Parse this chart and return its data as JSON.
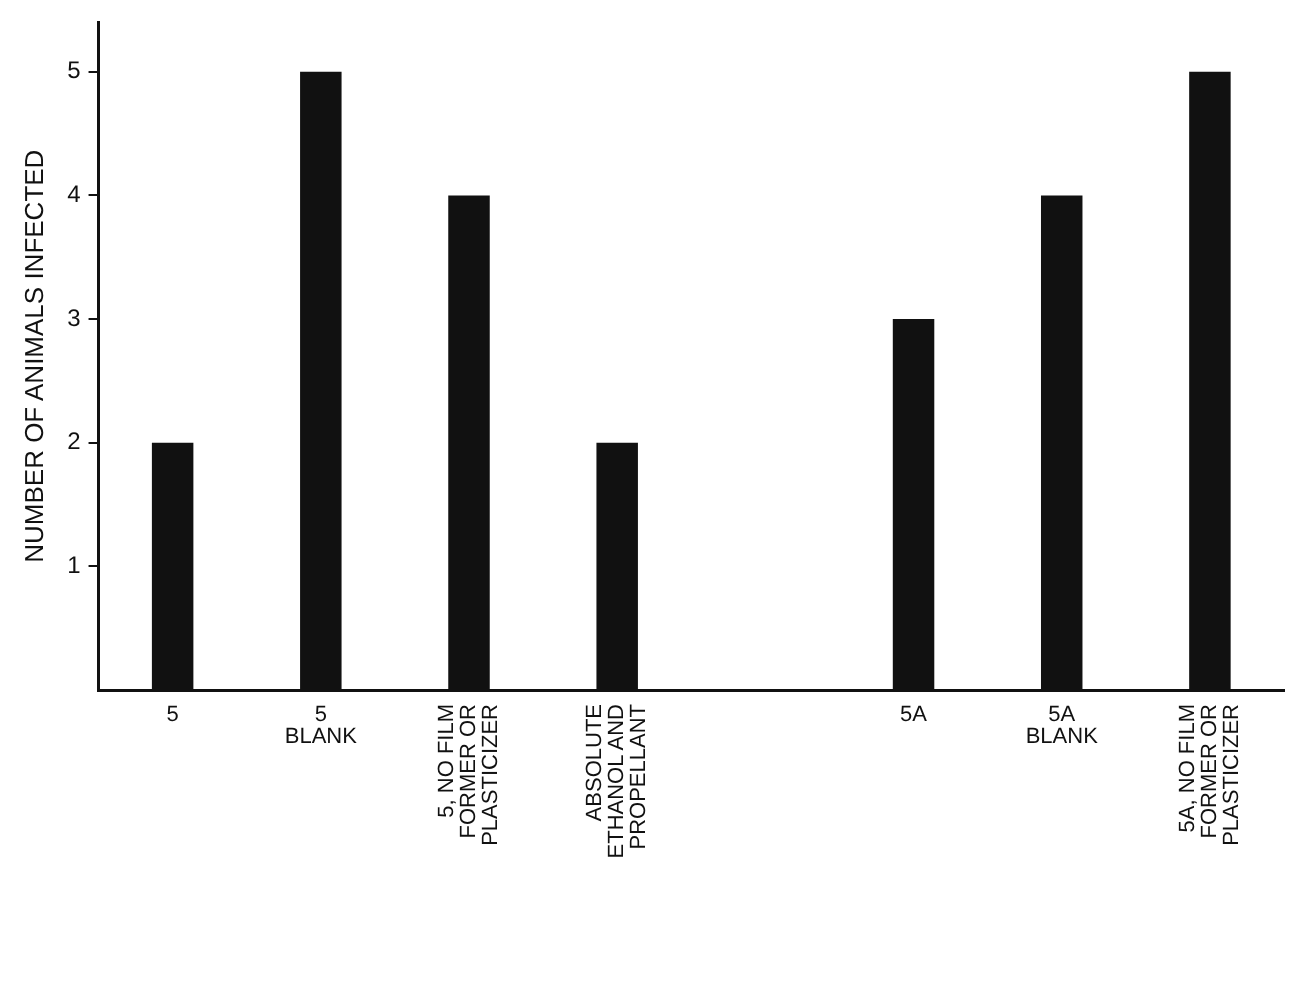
{
  "chart_data": {
    "type": "bar",
    "ylabel": "NUMBER OF ANIMALS INFECTED",
    "categories": [
      "5",
      "5\nBLANK",
      "5, NO FILM\nFORMER OR\nPLASTICIZER",
      "ABSOLUTE\nETHANOL AND\nPROPELLANT",
      null,
      "5A",
      "5A\nBLANK",
      "5A, NO FILM\nFORMER OR\nPLASTICIZER"
    ],
    "values": [
      2,
      5,
      4,
      2,
      null,
      3,
      4,
      5
    ],
    "color": "#111111",
    "ylim": [
      0,
      5.4
    ],
    "yticks": [
      1,
      2,
      3,
      4,
      5
    ],
    "grid": false,
    "legend": false
  }
}
